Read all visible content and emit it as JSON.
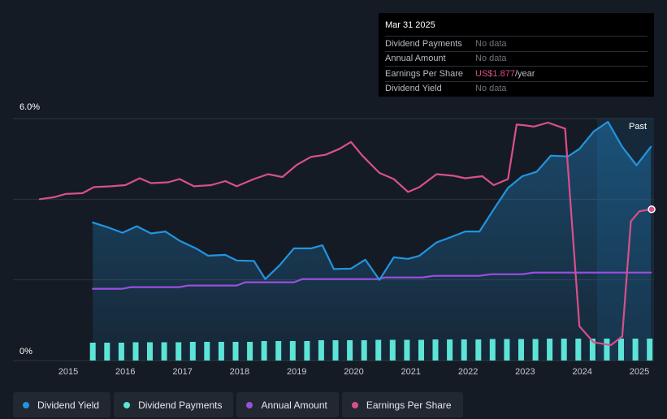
{
  "tooltip": {
    "date": "Mar 31 2025",
    "rows": [
      {
        "label": "Dividend Payments",
        "value": "No data"
      },
      {
        "label": "Annual Amount",
        "value": "No data"
      },
      {
        "label": "Earnings Per Share",
        "value": "US$1.877",
        "unit": "/year"
      },
      {
        "label": "Dividend Yield",
        "value": "No data"
      }
    ]
  },
  "past_label": "Past",
  "colors": {
    "background": "#151b24",
    "dividend_yield": "#2394df",
    "dividend_payments": "#5de4d6",
    "annual_amount": "#9b4fe0",
    "earnings_per_share": "#d8508b"
  },
  "legend": [
    {
      "label": "Dividend Yield",
      "color": "#2394df"
    },
    {
      "label": "Dividend Payments",
      "color": "#5de4d6"
    },
    {
      "label": "Annual Amount",
      "color": "#9b4fe0"
    },
    {
      "label": "Earnings Per Share",
      "color": "#d8508b"
    }
  ],
  "chart_data": {
    "type": "line",
    "title": "",
    "xlabel": "",
    "ylabel": "",
    "ylim": [
      0,
      6.0
    ],
    "xlim": [
      2014.5,
      2025.25
    ],
    "y_tick_labels": [
      "6.0%",
      "0%"
    ],
    "x_tick_labels": [
      "2015",
      "2016",
      "2017",
      "2018",
      "2019",
      "2020",
      "2021",
      "2022",
      "2023",
      "2024",
      "2025"
    ],
    "x_ticks": [
      2015,
      2016,
      2017,
      2018,
      2019,
      2020,
      2021,
      2022,
      2023,
      2024,
      2025
    ],
    "series": [
      {
        "name": "Dividend Yield",
        "unit": "%",
        "points": [
          [
            2015.43,
            3.42
          ],
          [
            2015.7,
            3.3
          ],
          [
            2015.95,
            3.17
          ],
          [
            2016.2,
            3.33
          ],
          [
            2016.45,
            3.15
          ],
          [
            2016.7,
            3.2
          ],
          [
            2016.95,
            2.97
          ],
          [
            2017.25,
            2.77
          ],
          [
            2017.45,
            2.6
          ],
          [
            2017.75,
            2.62
          ],
          [
            2017.95,
            2.48
          ],
          [
            2018.25,
            2.47
          ],
          [
            2018.45,
            2.02
          ],
          [
            2018.7,
            2.36
          ],
          [
            2018.95,
            2.78
          ],
          [
            2019.25,
            2.78
          ],
          [
            2019.45,
            2.86
          ],
          [
            2019.65,
            2.27
          ],
          [
            2019.95,
            2.28
          ],
          [
            2020.2,
            2.5
          ],
          [
            2020.45,
            2.0
          ],
          [
            2020.7,
            2.56
          ],
          [
            2020.95,
            2.52
          ],
          [
            2021.15,
            2.6
          ],
          [
            2021.45,
            2.93
          ],
          [
            2021.7,
            3.06
          ],
          [
            2021.95,
            3.2
          ],
          [
            2022.2,
            3.2
          ],
          [
            2022.45,
            3.75
          ],
          [
            2022.7,
            4.28
          ],
          [
            2022.95,
            4.57
          ],
          [
            2023.2,
            4.68
          ],
          [
            2023.45,
            5.08
          ],
          [
            2023.75,
            5.06
          ],
          [
            2023.95,
            5.25
          ],
          [
            2024.2,
            5.68
          ],
          [
            2024.45,
            5.92
          ],
          [
            2024.7,
            5.3
          ],
          [
            2024.95,
            4.84
          ],
          [
            2025.2,
            5.3
          ]
        ]
      },
      {
        "name": "Dividend Payments",
        "unit": "relative",
        "x": [
          2015.43,
          2015.68,
          2015.93,
          2016.18,
          2016.43,
          2016.68,
          2016.93,
          2017.18,
          2017.43,
          2017.68,
          2017.93,
          2018.18,
          2018.43,
          2018.68,
          2018.93,
          2019.18,
          2019.43,
          2019.68,
          2019.93,
          2020.18,
          2020.43,
          2020.68,
          2020.93,
          2021.18,
          2021.43,
          2021.68,
          2021.93,
          2022.18,
          2022.43,
          2022.68,
          2022.93,
          2023.18,
          2023.43,
          2023.68,
          2023.93,
          2024.18,
          2024.43,
          2024.68,
          2024.93,
          2025.18
        ],
        "values": [
          0.44,
          0.44,
          0.44,
          0.45,
          0.45,
          0.45,
          0.45,
          0.46,
          0.46,
          0.46,
          0.46,
          0.46,
          0.48,
          0.48,
          0.48,
          0.48,
          0.5,
          0.5,
          0.5,
          0.5,
          0.51,
          0.51,
          0.51,
          0.51,
          0.52,
          0.52,
          0.52,
          0.52,
          0.53,
          0.53,
          0.53,
          0.53,
          0.54,
          0.54,
          0.54,
          0.54,
          0.54,
          0.54,
          0.54,
          0.54
        ]
      },
      {
        "name": "Annual Amount",
        "unit": "relative",
        "points": [
          [
            2015.43,
            1.78
          ],
          [
            2015.95,
            1.78
          ],
          [
            2016.1,
            1.82
          ],
          [
            2016.95,
            1.82
          ],
          [
            2017.1,
            1.86
          ],
          [
            2017.95,
            1.86
          ],
          [
            2018.1,
            1.94
          ],
          [
            2018.95,
            1.94
          ],
          [
            2019.1,
            2.02
          ],
          [
            2020.4,
            2.02
          ],
          [
            2020.55,
            2.06
          ],
          [
            2021.2,
            2.06
          ],
          [
            2021.4,
            2.1
          ],
          [
            2022.2,
            2.1
          ],
          [
            2022.4,
            2.14
          ],
          [
            2022.95,
            2.14
          ],
          [
            2023.15,
            2.18
          ],
          [
            2025.2,
            2.18
          ]
        ]
      },
      {
        "name": "Earnings Per Share",
        "unit": "relative",
        "points": [
          [
            2014.5,
            4.0
          ],
          [
            2014.75,
            4.05
          ],
          [
            2014.95,
            4.13
          ],
          [
            2015.25,
            4.15
          ],
          [
            2015.45,
            4.3
          ],
          [
            2015.75,
            4.32
          ],
          [
            2016.0,
            4.35
          ],
          [
            2016.25,
            4.52
          ],
          [
            2016.45,
            4.4
          ],
          [
            2016.75,
            4.42
          ],
          [
            2016.95,
            4.5
          ],
          [
            2017.2,
            4.32
          ],
          [
            2017.5,
            4.35
          ],
          [
            2017.75,
            4.45
          ],
          [
            2017.95,
            4.32
          ],
          [
            2018.25,
            4.5
          ],
          [
            2018.5,
            4.62
          ],
          [
            2018.75,
            4.55
          ],
          [
            2019.0,
            4.85
          ],
          [
            2019.25,
            5.05
          ],
          [
            2019.5,
            5.1
          ],
          [
            2019.75,
            5.25
          ],
          [
            2019.95,
            5.42
          ],
          [
            2020.15,
            5.08
          ],
          [
            2020.45,
            4.65
          ],
          [
            2020.7,
            4.5
          ],
          [
            2020.95,
            4.18
          ],
          [
            2021.15,
            4.3
          ],
          [
            2021.45,
            4.62
          ],
          [
            2021.75,
            4.58
          ],
          [
            2021.95,
            4.52
          ],
          [
            2022.25,
            4.57
          ],
          [
            2022.45,
            4.35
          ],
          [
            2022.7,
            4.5
          ],
          [
            2022.85,
            5.85
          ],
          [
            2023.0,
            5.83
          ],
          [
            2023.15,
            5.8
          ],
          [
            2023.4,
            5.9
          ],
          [
            2023.7,
            5.75
          ],
          [
            2023.95,
            0.85
          ],
          [
            2024.2,
            0.45
          ],
          [
            2024.5,
            0.38
          ],
          [
            2024.7,
            0.6
          ],
          [
            2024.85,
            3.45
          ],
          [
            2025.0,
            3.7
          ],
          [
            2025.2,
            3.75
          ]
        ]
      }
    ]
  }
}
